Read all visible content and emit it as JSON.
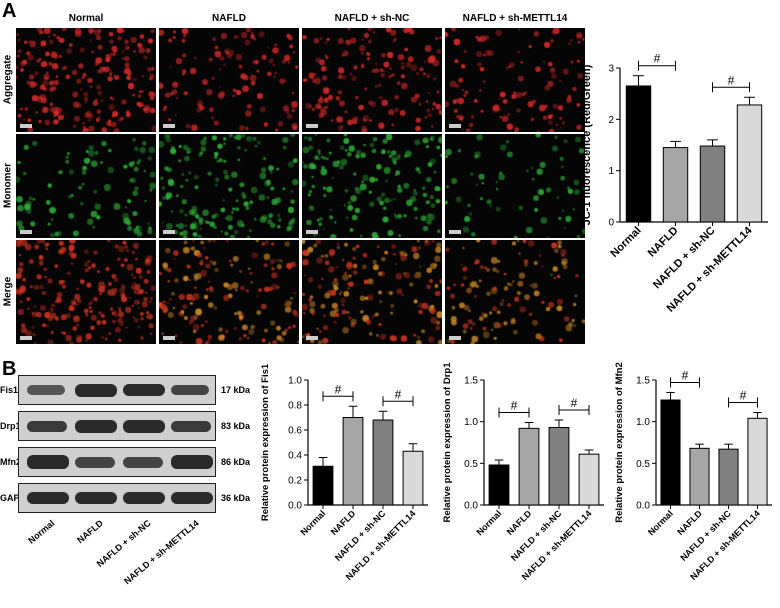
{
  "panel_a": {
    "letter": "A",
    "columns": [
      "Normal",
      "NAFLD",
      "NAFLD + sh-NC",
      "NAFLD + sh-METTL14"
    ],
    "rows": [
      "Aggregate",
      "Monomer",
      "Merge"
    ],
    "colors": {
      "aggregate": "#d42a2a",
      "monomer": "#2fae3a",
      "merge_red": "#cc3322",
      "merge_orange": "#d08a2a"
    }
  },
  "panel_b": {
    "letter": "B",
    "blot_labels": [
      "Fis1",
      "Drp1",
      "Mfn2",
      "GAPDH"
    ],
    "kda_labels": [
      "17 kDa",
      "83 kDa",
      "86 kDa",
      "36 kDa"
    ],
    "lanes": [
      "Normal",
      "NAFLD",
      "NAFLD + sh-NC",
      "NAFLD + sh-METTL14"
    ]
  },
  "chart_data": [
    {
      "type": "bar",
      "id": "jc1",
      "categories": [
        "Normal",
        "NAFLD",
        "NAFLD + sh-NC",
        "NAFLD + sh-METTL14"
      ],
      "values": [
        2.65,
        1.45,
        1.48,
        2.28
      ],
      "errors": [
        0.2,
        0.12,
        0.12,
        0.15
      ],
      "ylabel": "JC-1 fluorescence (Red/Green)",
      "ylim": [
        0,
        3
      ],
      "yticks": [
        0,
        1,
        2,
        3
      ],
      "colors": [
        "#000000",
        "#a6a6a6",
        "#808080",
        "#d9d9d9"
      ],
      "annotations": [
        {
          "from": 0,
          "to": 1,
          "label": "#"
        },
        {
          "from": 2,
          "to": 3,
          "label": "#"
        }
      ]
    },
    {
      "type": "bar",
      "id": "fis1",
      "categories": [
        "Normal",
        "NAFLD",
        "NAFLD + sh-NC",
        "NAFLD + sh-METTL14"
      ],
      "values": [
        0.31,
        0.7,
        0.68,
        0.43
      ],
      "errors": [
        0.07,
        0.09,
        0.07,
        0.06
      ],
      "ylabel": "Relative protein expression of Fis1",
      "ylim": [
        0,
        1.0
      ],
      "yticks": [
        "0.0",
        "0.2",
        "0.4",
        "0.6",
        "0.8",
        "1.0"
      ],
      "colors": [
        "#000000",
        "#a6a6a6",
        "#808080",
        "#d9d9d9"
      ],
      "annotations": [
        {
          "from": 0,
          "to": 1,
          "label": "#"
        },
        {
          "from": 2,
          "to": 3,
          "label": "#"
        }
      ]
    },
    {
      "type": "bar",
      "id": "drp1",
      "categories": [
        "Normal",
        "NAFLD",
        "NAFLD + sh-NC",
        "NAFLD + sh-METTL14"
      ],
      "values": [
        0.48,
        0.92,
        0.93,
        0.61
      ],
      "errors": [
        0.06,
        0.07,
        0.09,
        0.05
      ],
      "ylabel": "Relative protein expression of Drp1",
      "ylim": [
        0,
        1.5
      ],
      "yticks": [
        "0.0",
        "0.5",
        "1.0",
        "1.5"
      ],
      "colors": [
        "#000000",
        "#a6a6a6",
        "#808080",
        "#d9d9d9"
      ],
      "annotations": [
        {
          "from": 0,
          "to": 1,
          "label": "#"
        },
        {
          "from": 2,
          "to": 3,
          "label": "#"
        }
      ]
    },
    {
      "type": "bar",
      "id": "mfn2",
      "categories": [
        "Normal",
        "NAFLD",
        "NAFLD + sh-NC",
        "NAFLD + sh-METTL14"
      ],
      "values": [
        1.26,
        0.68,
        0.67,
        1.04
      ],
      "errors": [
        0.09,
        0.05,
        0.06,
        0.07
      ],
      "ylabel": "Relative protein expression of Mfn2",
      "ylim": [
        0,
        1.5
      ],
      "yticks": [
        "0.0",
        "0.5",
        "1.0",
        "1.5"
      ],
      "colors": [
        "#000000",
        "#a6a6a6",
        "#808080",
        "#d9d9d9"
      ],
      "annotations": [
        {
          "from": 0,
          "to": 1,
          "label": "#"
        },
        {
          "from": 2,
          "to": 3,
          "label": "#"
        }
      ]
    }
  ]
}
